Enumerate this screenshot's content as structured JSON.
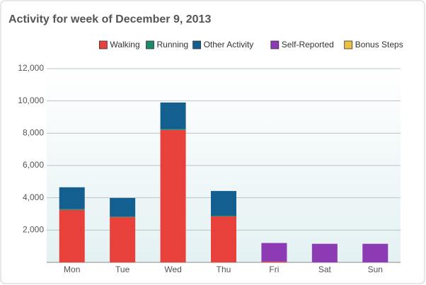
{
  "chart_data": {
    "type": "stacked_bar",
    "title": "Activity for week of December 9, 2013",
    "categories": [
      "Mon",
      "Tue",
      "Wed",
      "Thu",
      "Fri",
      "Sat",
      "Sun"
    ],
    "series": [
      {
        "name": "Walking",
        "color": "#e8403a",
        "values": [
          3250,
          2800,
          8200,
          2850,
          50,
          0,
          0
        ]
      },
      {
        "name": "Running",
        "color": "#1a8a6a",
        "values": [
          50,
          40,
          50,
          40,
          0,
          0,
          0
        ]
      },
      {
        "name": "Other Activity",
        "color": "#135f8f",
        "values": [
          1350,
          1150,
          1650,
          1530,
          0,
          0,
          0
        ]
      },
      {
        "name": "Self-Reported",
        "color": "#8c3bb5",
        "values": [
          0,
          0,
          0,
          0,
          1150,
          1150,
          1150
        ]
      },
      {
        "name": "Bonus Steps",
        "color": "#f0c040",
        "values": [
          0,
          0,
          0,
          0,
          0,
          0,
          0
        ]
      }
    ],
    "ylim": [
      0,
      12000
    ],
    "yticks": [
      {
        "value": 2000,
        "label": "2,000"
      },
      {
        "value": 4000,
        "label": "4,000"
      },
      {
        "value": 6000,
        "label": "6,000"
      },
      {
        "value": 8000,
        "label": "8,000"
      },
      {
        "value": 10000,
        "label": "10,000"
      },
      {
        "value": 12000,
        "label": "12,000"
      }
    ],
    "grid": true
  }
}
